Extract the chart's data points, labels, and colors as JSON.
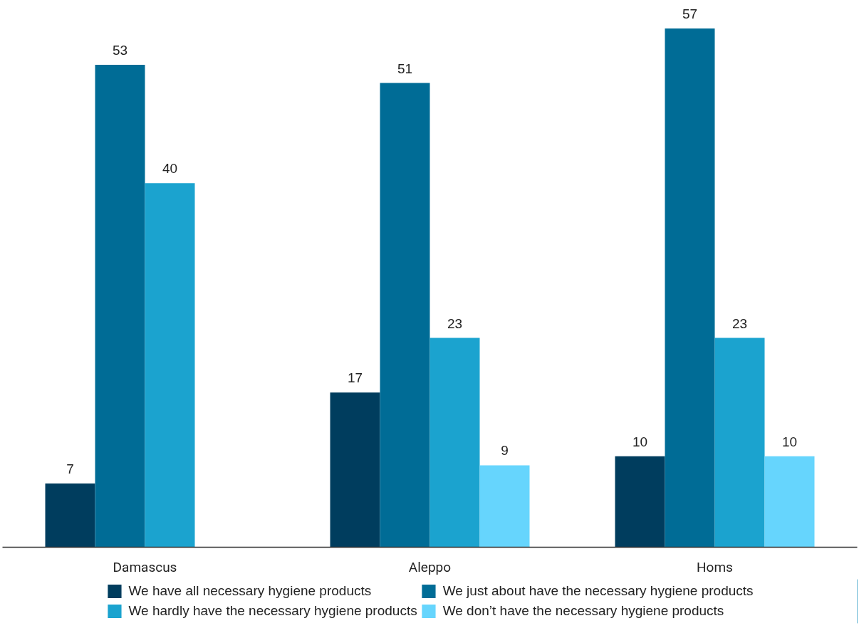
{
  "chart_data": {
    "type": "bar",
    "categories": [
      "Damascus",
      "Aleppo",
      "Homs"
    ],
    "series": [
      {
        "name": "We have all necessary hygiene products",
        "color": "#003d5e",
        "values": [
          7,
          17,
          10
        ]
      },
      {
        "name": "We just about have the necessary hygiene products",
        "color": "#006c96",
        "values": [
          53,
          51,
          57
        ]
      },
      {
        "name": "We hardly have the necessary hygiene products",
        "color": "#1ba3cf",
        "values": [
          40,
          23,
          23
        ]
      },
      {
        "name": "We don’t have the necessary hygiene products",
        "color": "#66d5fd",
        "values": [
          null,
          9,
          10
        ]
      }
    ],
    "data_labels": true,
    "grid": false,
    "legend": "bottom"
  }
}
